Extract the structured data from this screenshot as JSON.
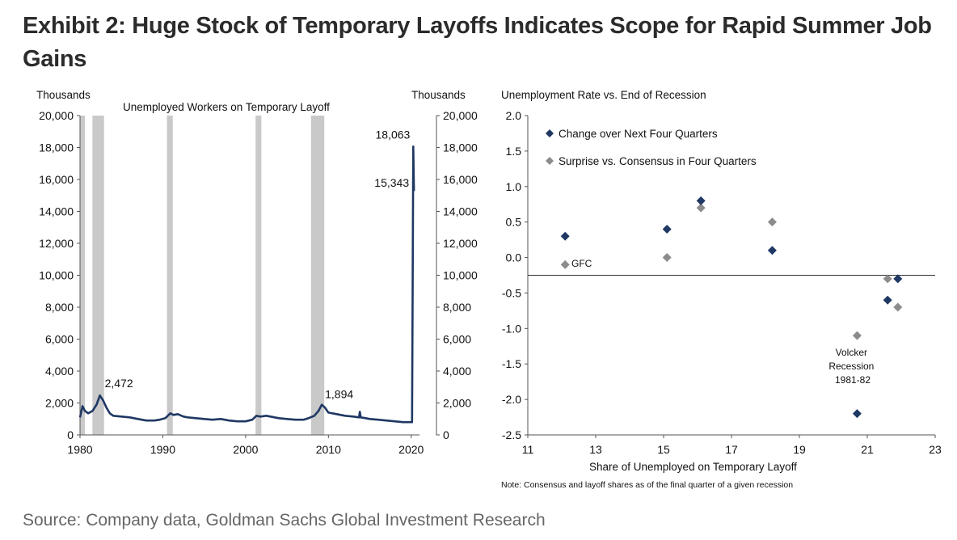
{
  "title": "Exhibit 2: Huge Stock of Temporary Layoffs Indicates Scope for Rapid Summer Job Gains",
  "source": "Source: Company data, Goldman Sachs Global Investment Research",
  "chart_data": [
    {
      "type": "line",
      "title": "Unemployed Workers on Temporary Layoff",
      "ylabel_left": "Thousands",
      "ylabel_right": "Thousands",
      "xlim": [
        1980,
        2021
      ],
      "ylim": [
        0,
        20000
      ],
      "x_ticks": [
        1980,
        1990,
        2000,
        2010,
        2020
      ],
      "x_tick_labels": [
        "1980",
        "1990",
        "2000",
        "2010",
        "2020"
      ],
      "y_ticks": [
        0,
        2000,
        4000,
        6000,
        8000,
        10000,
        12000,
        14000,
        16000,
        18000,
        20000
      ],
      "y_tick_labels": [
        "0",
        "2,000",
        "4,000",
        "6,000",
        "8,000",
        "10,000",
        "12,000",
        "14,000",
        "16,000",
        "18,000",
        "20,000"
      ],
      "recessions": [
        [
          1980.0,
          1980.5
        ],
        [
          1981.5,
          1982.9
        ],
        [
          1990.5,
          1991.2
        ],
        [
          2001.2,
          2001.9
        ],
        [
          2007.9,
          2009.5
        ]
      ],
      "series": [
        {
          "color": "#1f3864",
          "x": [
            1980.0,
            1980.3,
            1980.6,
            1981.0,
            1981.5,
            1982.0,
            1982.4,
            1982.8,
            1983.2,
            1983.6,
            1984.0,
            1985.0,
            1986.0,
            1987.0,
            1988.0,
            1989.0,
            1989.6,
            1990.3,
            1990.9,
            1991.3,
            1991.8,
            1992.5,
            1993.0,
            1994.0,
            1995.0,
            1996.0,
            1997.0,
            1998.0,
            1999.0,
            2000.0,
            2000.8,
            2001.3,
            2001.8,
            2002.5,
            2003.0,
            2004.0,
            2005.0,
            2006.0,
            2007.0,
            2007.6,
            2008.3,
            2008.8,
            2009.2,
            2009.6,
            2010.0,
            2011.0,
            2012.0,
            2013.0,
            2013.7,
            2013.8,
            2013.9,
            2014.5,
            2015.0,
            2016.0,
            2017.0,
            2018.0,
            2019.0,
            2019.9,
            2020.1,
            2020.25,
            2020.33,
            2020.45
          ],
          "y": [
            1100,
            1800,
            1500,
            1350,
            1500,
            1900,
            2472,
            2150,
            1700,
            1350,
            1200,
            1150,
            1100,
            1000,
            900,
            900,
            950,
            1050,
            1350,
            1250,
            1300,
            1150,
            1100,
            1050,
            1000,
            950,
            1000,
            900,
            850,
            850,
            950,
            1200,
            1150,
            1200,
            1150,
            1050,
            1000,
            950,
            950,
            1050,
            1200,
            1500,
            1894,
            1700,
            1400,
            1300,
            1200,
            1150,
            1100,
            1450,
            1100,
            1050,
            1000,
            950,
            900,
            850,
            800,
            800,
            800,
            18063,
            15343,
            15343
          ]
        }
      ],
      "annotations": [
        {
          "text": "2,472",
          "x": 1982.4,
          "y": 2472
        },
        {
          "text": "1,894",
          "x": 2009.2,
          "y": 1894
        },
        {
          "text": "18,063",
          "x": 2020.25,
          "y": 18063
        },
        {
          "text": "15,343",
          "x": 2020.33,
          "y": 15343
        }
      ]
    },
    {
      "type": "scatter",
      "title": "Unemployment Rate vs. End of Recession",
      "xlabel": "Share of Unemployed on Temporary Layoff",
      "note": "Note: Consensus and layoff shares as of the final quarter of a given recession",
      "xlim": [
        11,
        23
      ],
      "ylim": [
        -2.5,
        2.0
      ],
      "x_ticks": [
        11,
        13,
        15,
        17,
        19,
        21,
        23
      ],
      "x_tick_labels": [
        "11",
        "13",
        "15",
        "17",
        "19",
        "21",
        "23"
      ],
      "y_ticks": [
        2.0,
        1.5,
        1.0,
        0.5,
        0.0,
        -0.5,
        -1.0,
        -1.5,
        -2.0,
        -2.5
      ],
      "y_tick_labels": [
        "2.0",
        "1.5",
        "1.0",
        "0.5",
        "0.0",
        "-0.5",
        "-1.0",
        "-1.5",
        "-2.0",
        "-2.5"
      ],
      "reference_line_y": -0.25,
      "legend_position": "top-left",
      "series": [
        {
          "name": "Change over Next Four Quarters",
          "color": "#1f3864",
          "points": [
            [
              12.1,
              0.3
            ],
            [
              15.1,
              0.4
            ],
            [
              16.1,
              0.8
            ],
            [
              18.2,
              0.1
            ],
            [
              20.7,
              -2.2
            ],
            [
              21.6,
              -0.6
            ],
            [
              21.9,
              -0.3
            ]
          ]
        },
        {
          "name": "Surprise vs. Consensus in Four Quarters",
          "color": "#8c8c8c",
          "points": [
            [
              12.1,
              -0.1
            ],
            [
              15.1,
              0.0
            ],
            [
              16.1,
              0.7
            ],
            [
              18.2,
              0.5
            ],
            [
              20.7,
              -1.1
            ],
            [
              21.6,
              -0.3
            ],
            [
              21.9,
              -0.7
            ]
          ]
        }
      ],
      "annotations": [
        {
          "text": "GFC"
        },
        {
          "lines": [
            "Volcker",
            "Recession",
            "1981-82"
          ]
        }
      ]
    }
  ]
}
